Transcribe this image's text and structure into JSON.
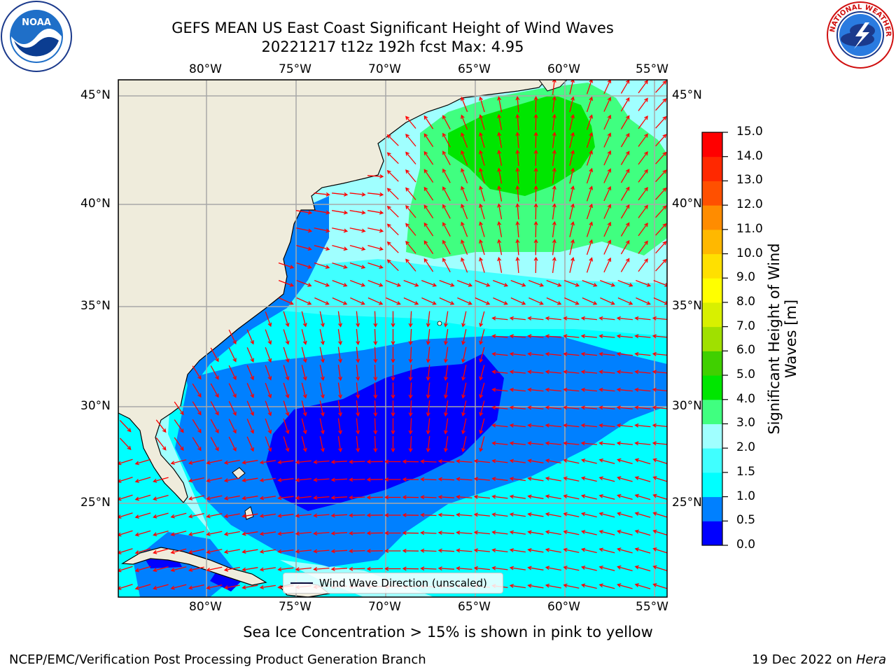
{
  "header": {
    "title_line1": "GEFS MEAN US East Coast Significant Height of Wind Waves",
    "title_line2": "20221217 t12z 192h fcst   Max: 4.95"
  },
  "logos": {
    "left": {
      "name": "noaa-logo",
      "text": "NOAA",
      "ring_text": "NATIONAL OCEANIC AND ATMOSPHERIC ADMINISTRATION · U.S. DEPARTMENT OF COMMERCE"
    },
    "right": {
      "name": "nws-logo",
      "ring_text": "NATIONAL WEATHER SERVICE"
    }
  },
  "map": {
    "longitude_labels": [
      "80°W",
      "75°W",
      "70°W",
      "65°W",
      "60°W",
      "55°W"
    ],
    "latitude_labels": [
      "45°N",
      "40°N",
      "35°N",
      "30°N",
      "25°N"
    ],
    "legend_label": "Wind Wave Direction (unscaled)",
    "colors": {
      "land": "#efecdc",
      "grid": "#a8a8a8",
      "arrows": "#ff0000",
      "coast": "#000000"
    }
  },
  "colorbar": {
    "label": "Significant Height of Wind Waves [m]",
    "ticks": [
      "0.0",
      "0.5",
      "1.0",
      "1.5",
      "2.0",
      "3.0",
      "4.0",
      "5.0",
      "6.0",
      "7.0",
      "8.0",
      "9.0",
      "10.0",
      "11.0",
      "12.0",
      "13.0",
      "14.0",
      "15.0"
    ],
    "colors": [
      "#0000ff",
      "#0080ff",
      "#00ffff",
      "#40ffff",
      "#a0ffff",
      "#40ff80",
      "#00e600",
      "#40d000",
      "#a0e000",
      "#d8f000",
      "#ffff00",
      "#ffe000",
      "#ffb800",
      "#ff8c00",
      "#ff5000",
      "#ff2800",
      "#ff0000"
    ]
  },
  "footer": {
    "sea_ice_note": "Sea Ice Concentration > 15% is shown in pink to yellow",
    "credit": "NCEP/EMC/Verification Post Processing Product Generation Branch",
    "date_prefix": "19 Dec 2022 on ",
    "machine": "Hera"
  }
}
